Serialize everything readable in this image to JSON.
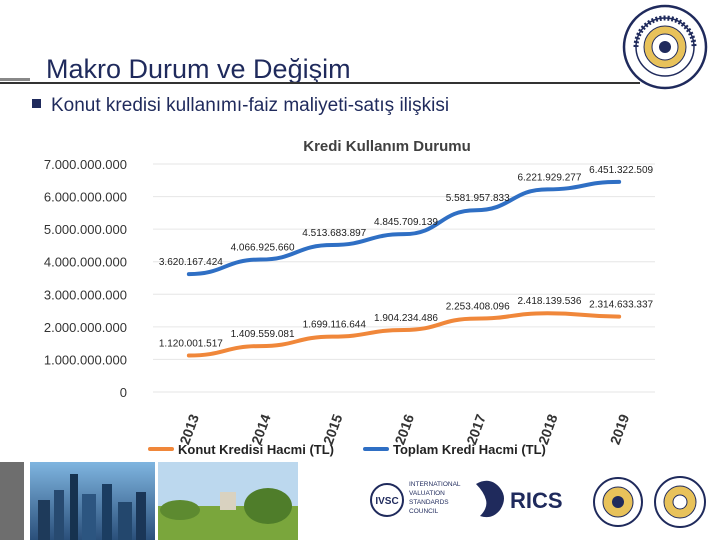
{
  "slide": {
    "title": "Makro Durum ve Değişim",
    "bullet": "Konut kredisi kullanımı-faiz maliyeti-satış ilişkisi"
  },
  "logos": {
    "seal_top_text": "ANKARA ÜNİVERSİTESİ",
    "seal_year": "1946",
    "ivsc_acronym": "IVSC",
    "ivsc_lines": [
      "INTERNATIONAL",
      "VALUATION",
      "STANDARDS",
      "COUNCIL"
    ],
    "rics": "RICS"
  },
  "colors": {
    "title": "#1f2a5c",
    "konut": "#f0873a",
    "toplam": "#2f6fc4",
    "grid": "#e6e6e6",
    "axis_text": "#333333"
  },
  "chart_data": {
    "type": "line",
    "title": "Kredi Kullanım Durumu",
    "categories": [
      "2013",
      "2014",
      "2015",
      "2016",
      "2017",
      "2018",
      "2019"
    ],
    "ylim": [
      0,
      7000000000
    ],
    "yticks": [
      "0",
      "1.000.000.000",
      "2.000.000.000",
      "3.000.000.000",
      "4.000.000.000",
      "5.000.000.000",
      "6.000.000.000",
      "7.000.000.000"
    ],
    "grid": true,
    "legend_position": "bottom",
    "series": [
      {
        "name": "Konut Kredisi Hacmi (TL)",
        "color": "#f0873a",
        "values": [
          1120001517,
          1409559081,
          1699116644,
          1904234486,
          2253408096,
          2418139536,
          2314633337
        ],
        "labels": [
          "1.120.001.517",
          "1.409.559.081",
          "1.699.116.644",
          "1.904.234.486",
          "2.253.408.096",
          "2.418.139.536",
          "2.314.633.337"
        ]
      },
      {
        "name": "Toplam Kredi Hacmi (TL)",
        "color": "#2f6fc4",
        "values": [
          3620167424,
          4066925660,
          4513683897,
          4845709139,
          5581957833,
          6221929277,
          6451322509
        ],
        "labels": [
          "3.620.167.424",
          "4.066.925.660",
          "4.513.683.897",
          "4.845.709.139",
          "5.581.957.833",
          "6.221.929.277",
          "6.451.322.509"
        ]
      }
    ]
  }
}
